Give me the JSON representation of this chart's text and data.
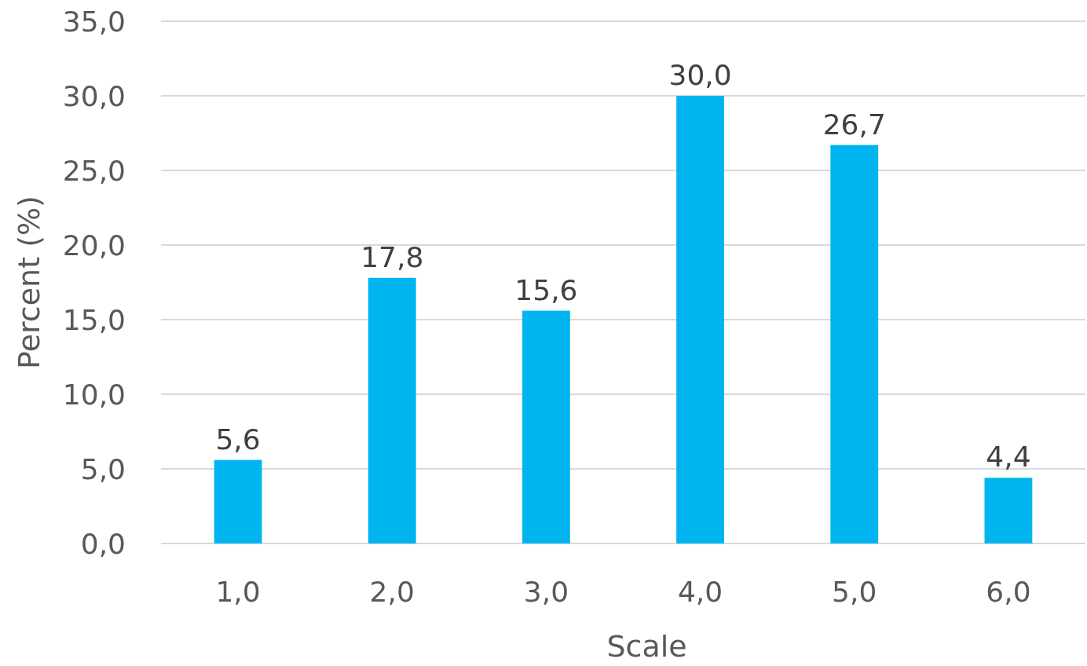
{
  "chart_data": {
    "type": "bar",
    "xlabel": "Scale",
    "ylabel": "Percent (%)",
    "categories": [
      "1,0",
      "2,0",
      "3,0",
      "4,0",
      "5,0",
      "6,0"
    ],
    "values": [
      5.6,
      17.8,
      15.6,
      30.0,
      26.7,
      4.4
    ],
    "value_labels": [
      "5,6",
      "17,8",
      "15,6",
      "30,0",
      "26,7",
      "4,4"
    ],
    "color": "#00b5ef",
    "ylim": [
      0,
      35
    ],
    "yticks": [
      {
        "value": 0,
        "label": "0,0"
      },
      {
        "value": 5,
        "label": "5,0"
      },
      {
        "value": 10,
        "label": "10,0"
      },
      {
        "value": 15,
        "label": "15,0"
      },
      {
        "value": 20,
        "label": "20,0"
      },
      {
        "value": 25,
        "label": "25,0"
      },
      {
        "value": 30,
        "label": "30,0"
      },
      {
        "value": 35,
        "label": "35,0"
      }
    ],
    "grid": "y"
  }
}
